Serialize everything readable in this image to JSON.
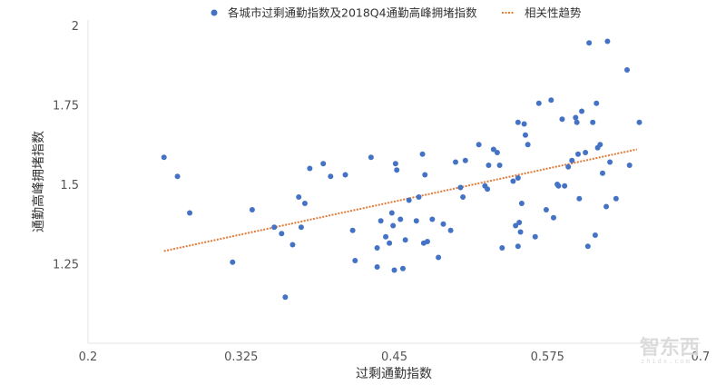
{
  "chart_data": {
    "type": "scatter",
    "title": "",
    "xlabel": "过剩通勤指数",
    "ylabel": "通勤高峰拥堵指数",
    "xlim": [
      0.2,
      0.7
    ],
    "ylim": [
      1.0,
      2.0
    ],
    "x_ticks": [
      "0.2",
      "0.325",
      "0.45",
      "0.575",
      "0.7"
    ],
    "y_ticks": [
      "2",
      "1.75",
      "1.5",
      "1.25"
    ],
    "grid": false,
    "legend_position": "top",
    "series": [
      {
        "name": "各城市过剩通勤指数及2018Q4通勤高峰拥堵指数",
        "kind": "scatter",
        "color": "#4472C4",
        "points": [
          [
            0.262,
            1.585
          ],
          [
            0.273,
            1.525
          ],
          [
            0.283,
            1.41
          ],
          [
            0.318,
            1.255
          ],
          [
            0.334,
            1.42
          ],
          [
            0.352,
            1.365
          ],
          [
            0.358,
            1.345
          ],
          [
            0.361,
            1.145
          ],
          [
            0.367,
            1.31
          ],
          [
            0.372,
            1.46
          ],
          [
            0.377,
            1.44
          ],
          [
            0.381,
            1.55
          ],
          [
            0.374,
            1.365
          ],
          [
            0.392,
            1.565
          ],
          [
            0.398,
            1.525
          ],
          [
            0.41,
            1.53
          ],
          [
            0.416,
            1.355
          ],
          [
            0.418,
            1.26
          ],
          [
            0.431,
            1.585
          ],
          [
            0.436,
            1.3
          ],
          [
            0.439,
            1.385
          ],
          [
            0.443,
            1.335
          ],
          [
            0.446,
            1.315
          ],
          [
            0.448,
            1.41
          ],
          [
            0.449,
            1.37
          ],
          [
            0.451,
            1.565
          ],
          [
            0.452,
            1.545
          ],
          [
            0.455,
            1.39
          ],
          [
            0.459,
            1.325
          ],
          [
            0.436,
            1.24
          ],
          [
            0.45,
            1.23
          ],
          [
            0.457,
            1.235
          ],
          [
            0.462,
            1.45
          ],
          [
            0.468,
            1.385
          ],
          [
            0.47,
            1.46
          ],
          [
            0.473,
            1.595
          ],
          [
            0.475,
            1.53
          ],
          [
            0.477,
            1.32
          ],
          [
            0.474,
            1.315
          ],
          [
            0.481,
            1.39
          ],
          [
            0.486,
            1.27
          ],
          [
            0.49,
            1.375
          ],
          [
            0.496,
            1.355
          ],
          [
            0.5,
            1.57
          ],
          [
            0.504,
            1.49
          ],
          [
            0.506,
            1.46
          ],
          [
            0.508,
            1.575
          ],
          [
            0.519,
            1.625
          ],
          [
            0.524,
            1.495
          ],
          [
            0.526,
            1.485
          ],
          [
            0.527,
            1.56
          ],
          [
            0.531,
            1.61
          ],
          [
            0.534,
            1.6
          ],
          [
            0.536,
            1.56
          ],
          [
            0.538,
            1.3
          ],
          [
            0.547,
            1.51
          ],
          [
            0.549,
            1.37
          ],
          [
            0.551,
            1.305
          ],
          [
            0.551,
            1.52
          ],
          [
            0.551,
            1.695
          ],
          [
            0.552,
            1.38
          ],
          [
            0.553,
            1.35
          ],
          [
            0.554,
            1.44
          ],
          [
            0.556,
            1.69
          ],
          [
            0.557,
            1.655
          ],
          [
            0.559,
            1.625
          ],
          [
            0.565,
            1.335
          ],
          [
            0.568,
            1.755
          ],
          [
            0.574,
            1.42
          ],
          [
            0.578,
            1.765
          ],
          [
            0.58,
            1.395
          ],
          [
            0.583,
            1.5
          ],
          [
            0.584,
            1.495
          ],
          [
            0.587,
            1.705
          ],
          [
            0.589,
            1.495
          ],
          [
            0.592,
            1.555
          ],
          [
            0.595,
            1.575
          ],
          [
            0.598,
            1.71
          ],
          [
            0.599,
            1.695
          ],
          [
            0.6,
            1.595
          ],
          [
            0.601,
            1.455
          ],
          [
            0.603,
            1.73
          ],
          [
            0.606,
            1.6
          ],
          [
            0.608,
            1.305
          ],
          [
            0.609,
            1.945
          ],
          [
            0.612,
            1.695
          ],
          [
            0.614,
            1.34
          ],
          [
            0.615,
            1.755
          ],
          [
            0.616,
            1.615
          ],
          [
            0.618,
            1.625
          ],
          [
            0.62,
            1.535
          ],
          [
            0.623,
            1.43
          ],
          [
            0.624,
            1.95
          ],
          [
            0.626,
            1.57
          ],
          [
            0.631,
            1.455
          ],
          [
            0.64,
            1.86
          ],
          [
            0.642,
            1.56
          ],
          [
            0.65,
            1.695
          ]
        ]
      },
      {
        "name": "相关性趋势",
        "kind": "trendline",
        "color": "#E07B39",
        "points": [
          [
            0.262,
            1.29
          ],
          [
            0.648,
            1.61
          ]
        ]
      }
    ]
  },
  "watermark": {
    "text": "智东西",
    "sub": "zhidx.com"
  }
}
